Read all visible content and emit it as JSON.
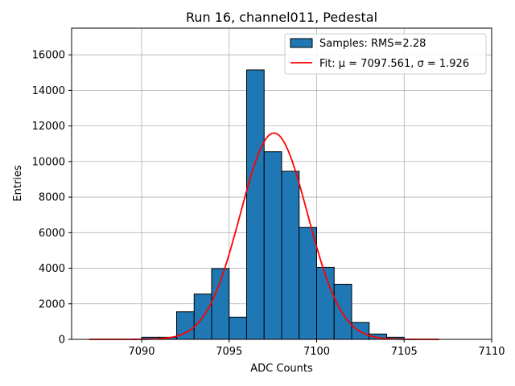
{
  "chart_data": {
    "type": "bar",
    "title": "Run 16, channel011, Pedestal",
    "xlabel": "ADC Counts",
    "ylabel": "Entries",
    "xlim": [
      7086,
      7110
    ],
    "ylim": [
      0,
      17500
    ],
    "xticks": [
      7090,
      7095,
      7100,
      7105,
      7110
    ],
    "yticks": [
      0,
      2000,
      4000,
      6000,
      8000,
      10000,
      12000,
      14000,
      16000
    ],
    "grid": true,
    "legend_position": "upper-right",
    "bin_width": 1,
    "bars": [
      {
        "x0": 7090,
        "value": 120
      },
      {
        "x0": 7091,
        "value": 120
      },
      {
        "x0": 7092,
        "value": 1550
      },
      {
        "x0": 7093,
        "value": 2550
      },
      {
        "x0": 7094,
        "value": 3980
      },
      {
        "x0": 7095,
        "value": 1250
      },
      {
        "x0": 7096,
        "value": 15150
      },
      {
        "x0": 7097,
        "value": 10550
      },
      {
        "x0": 7098,
        "value": 9450
      },
      {
        "x0": 7099,
        "value": 6300
      },
      {
        "x0": 7100,
        "value": 4050
      },
      {
        "x0": 7101,
        "value": 3100
      },
      {
        "x0": 7102,
        "value": 950
      },
      {
        "x0": 7103,
        "value": 300
      },
      {
        "x0": 7104,
        "value": 120
      }
    ],
    "series": [
      {
        "name": "Samples: RMS=2.28",
        "kind": "histogram",
        "color": "#1f77b4"
      },
      {
        "name": "Fit: μ = 7097.561, σ = 1.926",
        "kind": "gaussian-fit",
        "color": "#ff0000",
        "mu": 7097.561,
        "sigma": 1.926,
        "amplitude": 11600,
        "x_range": [
          7087,
          7107
        ]
      }
    ]
  }
}
